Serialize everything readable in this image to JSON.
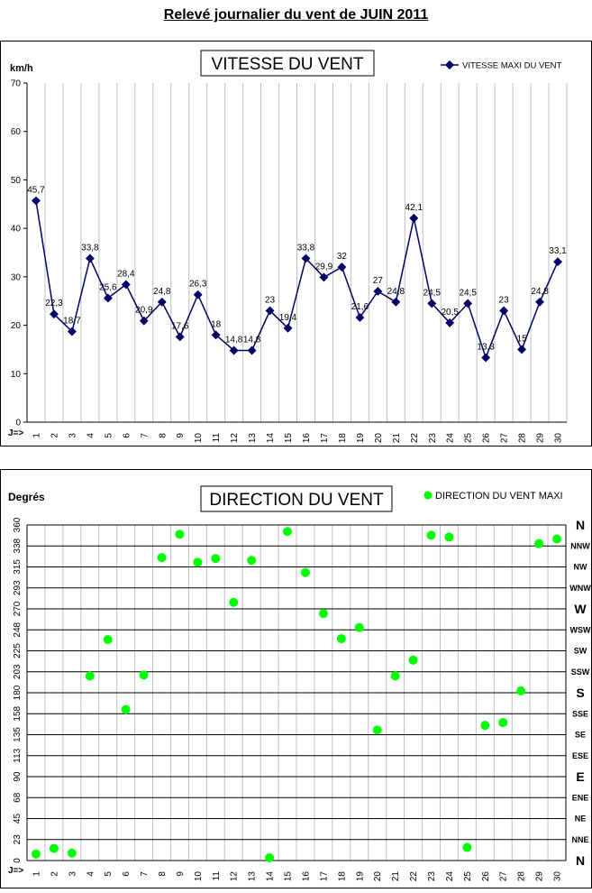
{
  "page_title": "Relevé journalier du vent de JUIN 2011",
  "colors": {
    "speed_series": "#000066",
    "direction_series": "#00ff00",
    "grid": "#c0c0c0",
    "grid_dark": "#000000"
  },
  "chart_data": [
    {
      "type": "line",
      "title": "VITESSE DU VENT",
      "ylabel": "km/h",
      "x_axis_marker": "J=>",
      "legend": "VITESSE MAXI DU VENT",
      "legend_position": "top-right",
      "ylim": [
        0,
        70
      ],
      "yticks": [
        0,
        10,
        20,
        30,
        40,
        50,
        60,
        70
      ],
      "x": [
        1,
        2,
        3,
        4,
        5,
        6,
        7,
        8,
        9,
        10,
        11,
        12,
        13,
        14,
        15,
        16,
        17,
        18,
        19,
        20,
        21,
        22,
        23,
        24,
        25,
        26,
        27,
        28,
        29,
        30
      ],
      "series": [
        {
          "name": "VITESSE MAXI DU VENT",
          "values": [
            45.7,
            22.3,
            18.7,
            33.8,
            25.6,
            28.4,
            20.9,
            24.8,
            17.6,
            26.3,
            18,
            14.8,
            14.8,
            23,
            19.4,
            33.8,
            29.9,
            32,
            21.6,
            27,
            24.8,
            42.1,
            24.5,
            20.5,
            24.5,
            13.3,
            23,
            15,
            24.8,
            33.1
          ],
          "labels": [
            "45,7",
            "22,3",
            "18,7",
            "33,8",
            "25,6",
            "28,4",
            "20,9",
            "24,8",
            "17,6",
            "26,3",
            "18",
            "14,8",
            "14,8",
            "23",
            "19,4",
            "33,8",
            "29,9",
            "32",
            "21,6",
            "27",
            "24,8",
            "42,1",
            "24,5",
            "20,5",
            "24,5",
            "13,3",
            "23",
            "15",
            "24,8",
            "33,1"
          ]
        }
      ],
      "grid": "vertical"
    },
    {
      "type": "scatter",
      "title": "DIRECTION DU VENT",
      "ylabel": "Degrés",
      "x_axis_marker": "J=>",
      "legend": "DIRECTION DU VENT MAXI",
      "legend_position": "top-right",
      "ylim": [
        0,
        360
      ],
      "ytick_values": [
        0,
        22.5,
        45,
        67.5,
        90,
        112.5,
        135,
        157.5,
        180,
        202.5,
        225,
        247.5,
        270,
        292.5,
        315,
        337.5,
        360
      ],
      "ytick_labels": [
        "0",
        "23",
        "45",
        "68",
        "90",
        "113",
        "135",
        "158",
        "180",
        "203",
        "225",
        "248",
        "270",
        "293",
        "315",
        "338",
        "360"
      ],
      "compass_labels": [
        "N",
        "NNE",
        "NE",
        "ENE",
        "E",
        "ESE",
        "SE",
        "SSE",
        "S",
        "SSW",
        "SW",
        "WSW",
        "W",
        "WNW",
        "NW",
        "NNW",
        "N"
      ],
      "x": [
        1,
        2,
        3,
        4,
        5,
        6,
        7,
        8,
        9,
        10,
        11,
        12,
        13,
        14,
        15,
        16,
        17,
        18,
        19,
        20,
        21,
        22,
        23,
        24,
        25,
        26,
        27,
        28,
        29,
        30
      ],
      "series": [
        {
          "name": "DIRECTION DU VENT MAXI",
          "values": [
            7,
            13,
            8,
            198,
            237,
            162,
            199,
            325,
            350,
            320,
            324,
            277,
            322,
            3,
            353,
            309,
            265,
            238,
            250,
            140,
            198,
            215,
            349,
            347,
            14,
            145,
            148,
            182,
            340,
            345
          ]
        }
      ],
      "grid": "both"
    }
  ]
}
